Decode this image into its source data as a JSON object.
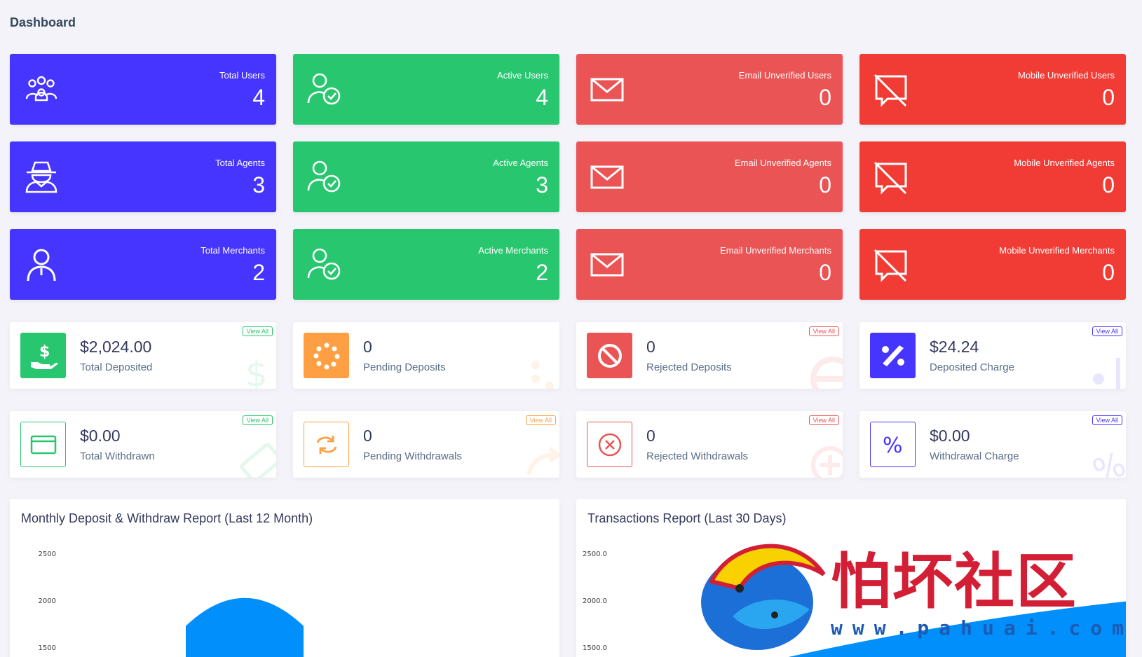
{
  "page": {
    "title": "Dashboard"
  },
  "widgets": [
    {
      "label": "Total Users",
      "value": "4",
      "color": "#4634ff",
      "icon": "users-group-icon"
    },
    {
      "label": "Active Users",
      "value": "4",
      "color": "#28c76f",
      "icon": "user-check-icon"
    },
    {
      "label": "Email Unverified Users",
      "value": "0",
      "color": "#ea5455",
      "icon": "envelope-icon"
    },
    {
      "label": "Mobile Unverified Users",
      "value": "0",
      "color": "#f13c36",
      "icon": "comment-slash-icon"
    },
    {
      "label": "Total Agents",
      "value": "3",
      "color": "#4634ff",
      "icon": "user-secret-icon"
    },
    {
      "label": "Active Agents",
      "value": "3",
      "color": "#28c76f",
      "icon": "user-check-icon"
    },
    {
      "label": "Email Unverified Agents",
      "value": "0",
      "color": "#ea5455",
      "icon": "envelope-icon"
    },
    {
      "label": "Mobile Unverified Agents",
      "value": "0",
      "color": "#f13c36",
      "icon": "comment-slash-icon"
    },
    {
      "label": "Total Merchants",
      "value": "2",
      "color": "#4634ff",
      "icon": "user-icon"
    },
    {
      "label": "Active Merchants",
      "value": "2",
      "color": "#28c76f",
      "icon": "user-check-icon"
    },
    {
      "label": "Email Unverified Merchants",
      "value": "0",
      "color": "#ea5455",
      "icon": "envelope-icon"
    },
    {
      "label": "Mobile Unverified Merchants",
      "value": "0",
      "color": "#f13c36",
      "icon": "comment-slash-icon"
    }
  ],
  "summary": [
    {
      "value": "$2,024.00",
      "label": "Total Deposited",
      "view_all": "View All",
      "icon": "hand-dollar-icon",
      "color": "#28c76f"
    },
    {
      "value": "0",
      "label": "Pending Deposits",
      "view_all": "",
      "icon": "spinner-icon",
      "color": "#ff9f43"
    },
    {
      "value": "0",
      "label": "Rejected Deposits",
      "view_all": "View All",
      "icon": "ban-icon",
      "color": "#ea5455"
    },
    {
      "value": "$24.24",
      "label": "Deposited Charge",
      "view_all": "View All",
      "icon": "percent-icon",
      "color": "#4634ff"
    },
    {
      "value": "$0.00",
      "label": "Total Withdrawn",
      "view_all": "View All",
      "icon": "credit-card-icon",
      "color": "#28c76f"
    },
    {
      "value": "0",
      "label": "Pending Withdrawals",
      "view_all": "View All",
      "icon": "sync-icon",
      "color": "#ff9f43"
    },
    {
      "value": "0",
      "label": "Rejected Withdrawals",
      "view_all": "View All",
      "icon": "times-circle-icon",
      "color": "#ea5455"
    },
    {
      "value": "$0.00",
      "label": "Withdrawal Charge",
      "view_all": "View All",
      "icon": "percent-icon",
      "color": "#4634ff"
    }
  ],
  "panels": {
    "monthly": {
      "title": "Monthly Deposit & Withdraw Report (Last 12 Month)"
    },
    "transactions": {
      "title": "Transactions Report (Last 30 Days)"
    }
  },
  "chart_data": [
    {
      "type": "area",
      "title": "Monthly Deposit & Withdraw Report (Last 12 Month)",
      "y_ticks": [
        "2500",
        "2000",
        "1500"
      ],
      "ylim": [
        1500,
        2500
      ],
      "series": [
        {
          "values": [
            2024
          ],
          "color": "#008ffb"
        }
      ]
    },
    {
      "type": "area",
      "title": "Transactions Report (Last 30 Days)",
      "y_ticks": [
        "2500.0",
        "2000.0",
        "1500.0"
      ],
      "ylim": [
        1500,
        2500
      ],
      "series": [
        {
          "values": [],
          "color": "#008ffb"
        }
      ]
    }
  ],
  "watermark": {
    "text": "怕坏社区",
    "url": "www.pahuai.com"
  }
}
